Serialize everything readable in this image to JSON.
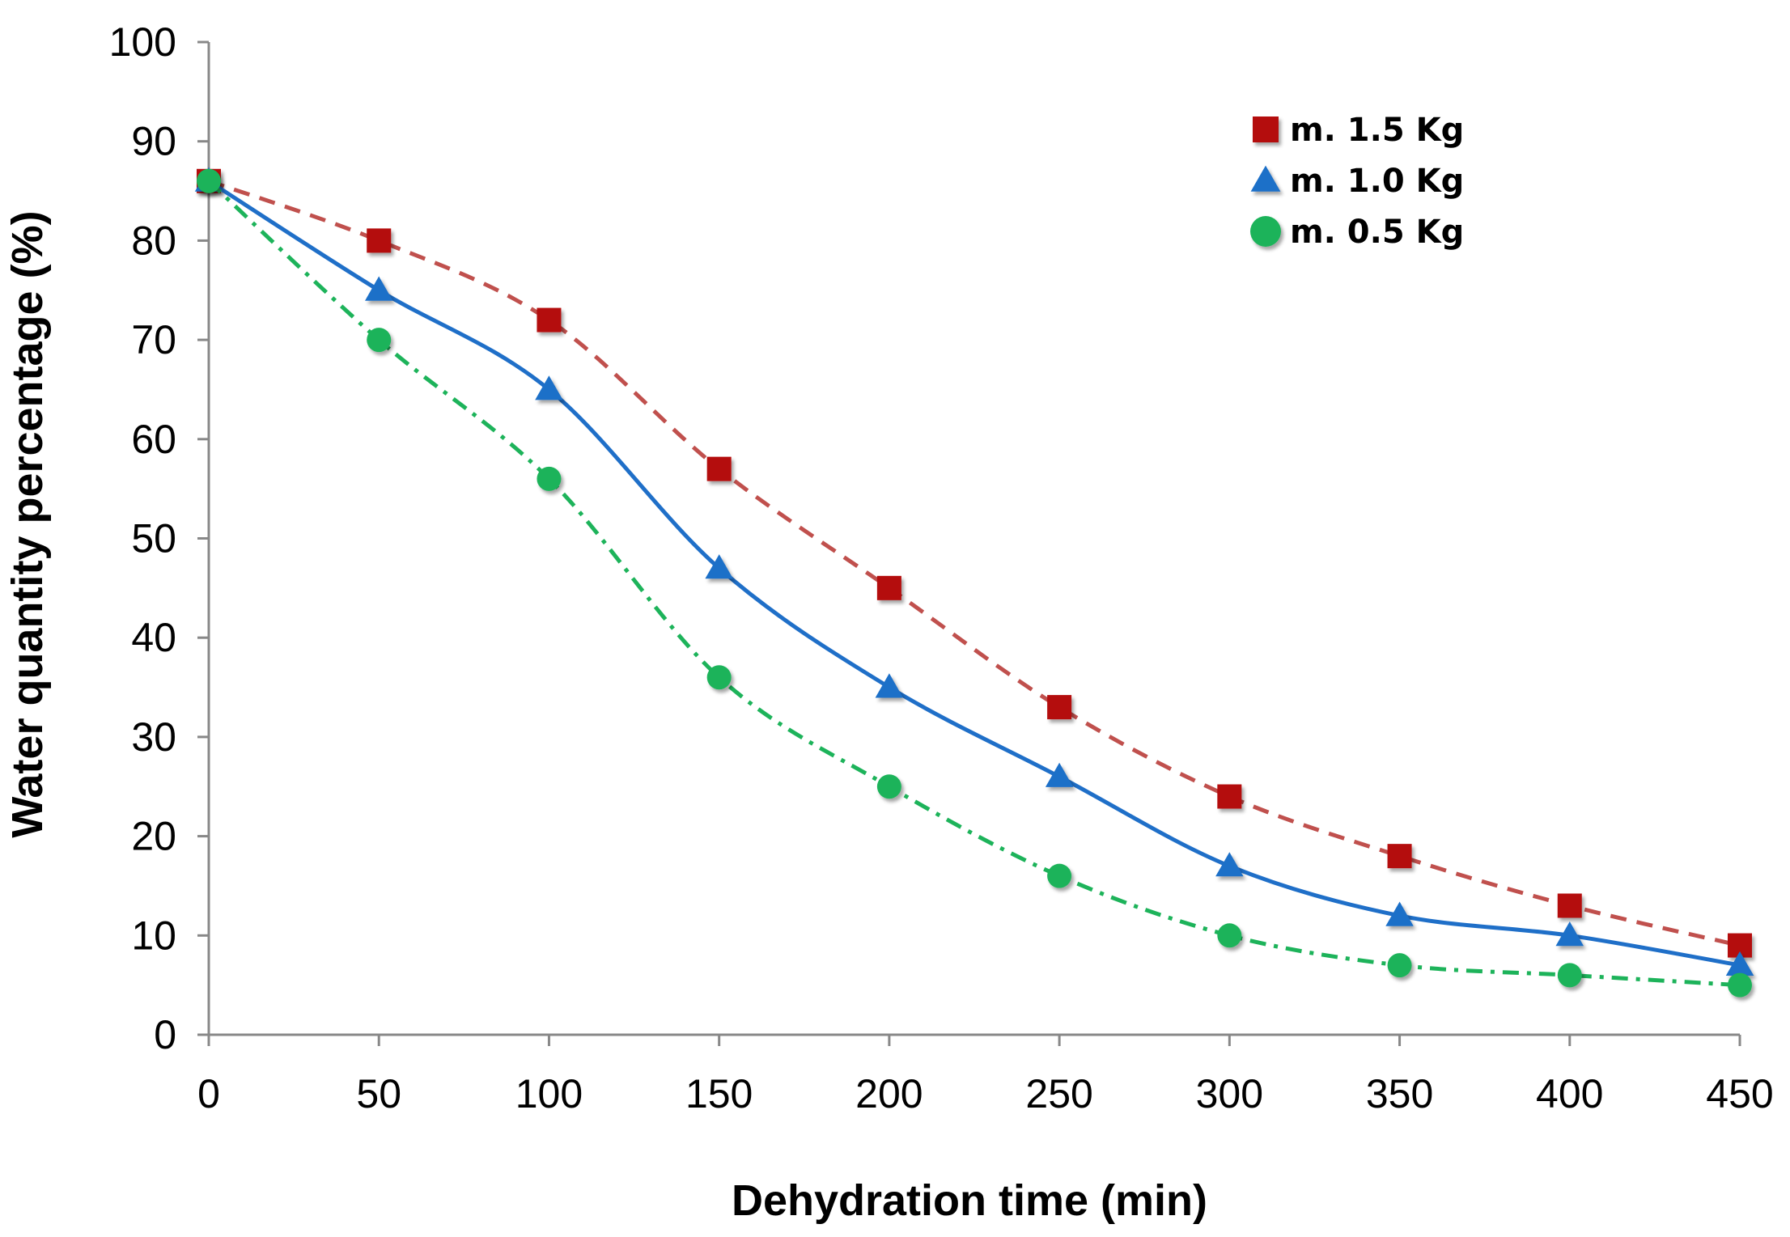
{
  "chart_data": {
    "type": "line",
    "title": "",
    "xlabel": "Dehydration time (min)",
    "ylabel": "Water quantity percentage (%)",
    "x": [
      0,
      50,
      100,
      150,
      200,
      250,
      300,
      350,
      400,
      450
    ],
    "xlim": [
      0,
      450
    ],
    "ylim": [
      0,
      100
    ],
    "x_ticks": [
      0,
      50,
      100,
      150,
      200,
      250,
      300,
      350,
      400,
      450
    ],
    "y_ticks": [
      0,
      10,
      20,
      30,
      40,
      50,
      60,
      70,
      80,
      90,
      100
    ],
    "grid": false,
    "legend_position": "top-right",
    "series": [
      {
        "name": "m. 1.5 Kg",
        "marker": "square",
        "line_style": "dashed",
        "color": "#b40f0f",
        "line_color": "#c0504d",
        "values": [
          86,
          80,
          72,
          57,
          45,
          33,
          24,
          18,
          13,
          9
        ]
      },
      {
        "name": "m. 1.0 Kg",
        "marker": "triangle",
        "line_style": "solid",
        "color": "#1f6fc8",
        "line_color": "#1f6fc8",
        "values": [
          86,
          75,
          65,
          47,
          35,
          26,
          17,
          12,
          10,
          7
        ]
      },
      {
        "name": "m. 0.5 Kg",
        "marker": "circle",
        "line_style": "dash-dot",
        "color": "#1db35a",
        "line_color": "#1db35a",
        "values": [
          86,
          70,
          56,
          36,
          25,
          16,
          10,
          7,
          6,
          5
        ]
      }
    ]
  }
}
